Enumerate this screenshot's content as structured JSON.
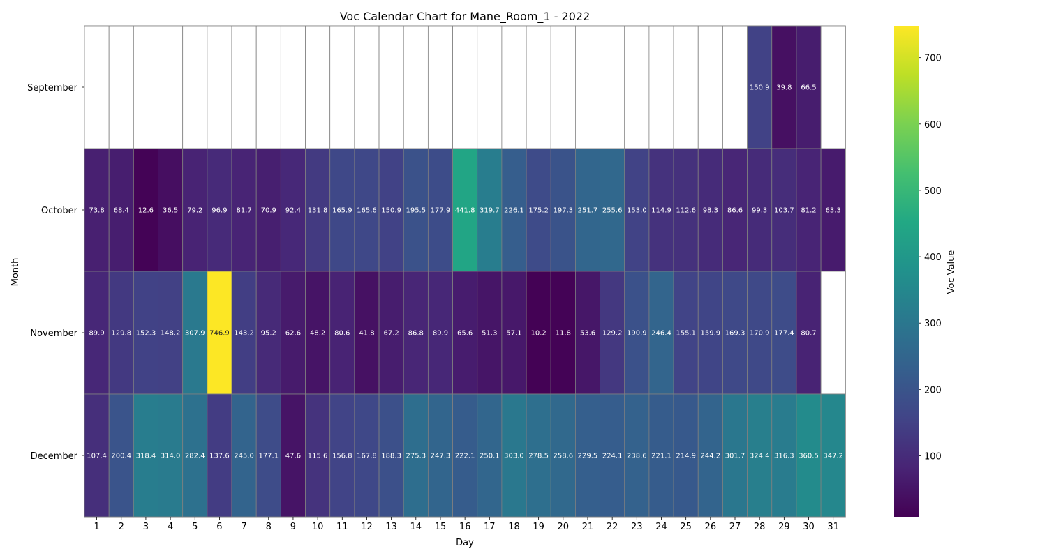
{
  "chart_data": {
    "type": "heatmap",
    "title": "Voc Calendar Chart for Mane_Room_1 - 2022",
    "xlabel": "Day",
    "ylabel": "Month",
    "colorbar_label": "Voc Value",
    "colormap": "viridis",
    "color_range": [
      8,
      748
    ],
    "colorbar_ticks": [
      100,
      200,
      300,
      400,
      500,
      600,
      700
    ],
    "grid_color": "#808080",
    "days": [
      1,
      2,
      3,
      4,
      5,
      6,
      7,
      8,
      9,
      10,
      11,
      12,
      13,
      14,
      15,
      16,
      17,
      18,
      19,
      20,
      21,
      22,
      23,
      24,
      25,
      26,
      27,
      28,
      29,
      30,
      31
    ],
    "months": [
      "September",
      "October",
      "November",
      "December"
    ],
    "values": [
      [
        null,
        null,
        null,
        null,
        null,
        null,
        null,
        null,
        null,
        null,
        null,
        null,
        null,
        null,
        null,
        null,
        null,
        null,
        null,
        null,
        null,
        null,
        null,
        null,
        null,
        null,
        null,
        150.9,
        39.8,
        66.5,
        null
      ],
      [
        73.8,
        68.4,
        12.6,
        36.5,
        79.2,
        96.9,
        81.7,
        70.9,
        92.4,
        131.8,
        165.9,
        165.6,
        150.9,
        195.5,
        177.9,
        441.8,
        319.7,
        226.1,
        175.2,
        197.3,
        251.7,
        255.6,
        153.0,
        114.9,
        112.6,
        98.3,
        86.6,
        99.3,
        103.7,
        81.2,
        63.3
      ],
      [
        89.9,
        129.8,
        152.3,
        148.2,
        307.9,
        746.9,
        143.2,
        95.2,
        62.6,
        48.2,
        80.6,
        41.8,
        67.2,
        86.8,
        89.9,
        65.6,
        51.3,
        57.1,
        10.2,
        11.8,
        53.6,
        129.2,
        190.9,
        246.4,
        155.1,
        159.9,
        169.3,
        170.9,
        177.4,
        80.7,
        null
      ],
      [
        107.4,
        200.4,
        318.4,
        314.0,
        282.4,
        137.6,
        245.0,
        177.1,
        47.6,
        115.6,
        156.8,
        167.8,
        188.3,
        275.3,
        247.3,
        222.1,
        250.1,
        303.0,
        278.5,
        258.6,
        229.5,
        224.1,
        238.6,
        221.1,
        214.9,
        244.2,
        301.7,
        324.4,
        316.3,
        360.5,
        347.2
      ]
    ]
  }
}
